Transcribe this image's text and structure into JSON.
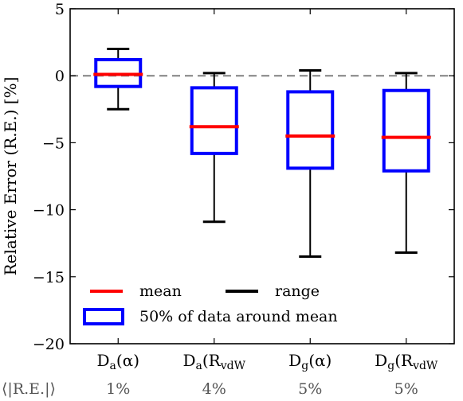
{
  "chart_data": {
    "type": "box",
    "ylabel": "Relative Error (R.E.) [%]",
    "ylim": [
      -20,
      5
    ],
    "yticks": [
      5,
      0,
      -5,
      -10,
      -15,
      -20
    ],
    "reference_line": 0,
    "categories": [
      {
        "base": "D",
        "sub": "a",
        "arg": "(α)",
        "arg_sub": null
      },
      {
        "base": "D",
        "sub": "a",
        "arg": "(R",
        "arg_sub": "vdW"
      },
      {
        "base": "D",
        "sub": "g",
        "arg": "(α)",
        "arg_sub": null
      },
      {
        "base": "D",
        "sub": "g",
        "arg": "(R",
        "arg_sub": "vdW"
      }
    ],
    "boxes": [
      {
        "mean": 0.1,
        "q1": -0.8,
        "q3": 1.2,
        "min": -2.5,
        "max": 2.0
      },
      {
        "mean": -3.8,
        "q1": -5.8,
        "q3": -0.9,
        "min": -10.9,
        "max": 0.2
      },
      {
        "mean": -4.5,
        "q1": -6.9,
        "q3": -1.2,
        "min": -13.5,
        "max": 0.4
      },
      {
        "mean": -4.6,
        "q1": -7.1,
        "q3": -1.1,
        "min": -13.2,
        "max": 0.2
      }
    ],
    "mare_label": "⟨|R.E.|⟩",
    "mare_values": [
      "1%",
      "4%",
      "5%",
      "5%"
    ],
    "legend": {
      "mean": "mean",
      "range": "range",
      "box": "50% of data around mean"
    },
    "colors": {
      "mean": "#ff0000",
      "box": "#0000ff",
      "whisker": "#000000",
      "reference_line": "#808080"
    }
  }
}
